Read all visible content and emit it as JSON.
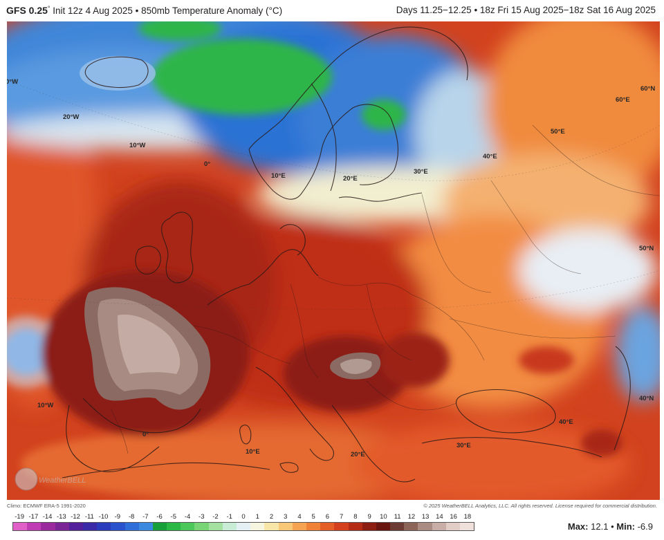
{
  "header": {
    "model": "GFS 0.25",
    "degree": "°",
    "init": "Init 12z 4 Aug 2025",
    "sep": "•",
    "product": "850mb Temperature Anomaly (°C)",
    "valid": "Days 11.25−12.25 • 18z Fri 15 Aug 2025−18z Sat 16 Aug 2025"
  },
  "grid_labels": {
    "lon_30w": "0°W",
    "lon_20w": "20°W",
    "lon_10w_top": "10°W",
    "lon_0_top": "0°",
    "lon_10e_top": "10°E",
    "lon_20e_top": "20°E",
    "lon_30e_top": "30°E",
    "lon_40e_top": "40°E",
    "lon_50e_top": "50°E",
    "lat_60n": "60°N",
    "lon_60e": "60°E",
    "lat_50n": "50°N",
    "lat_40n": "40°N",
    "lon_10w_bottom": "10°W",
    "lon_0_bottom": "0°",
    "lon_10e_bottom": "10°E",
    "lon_20e_bottom": "20°E",
    "lon_30e_bottom": "30°E",
    "lon_40e_bottom": "40°E"
  },
  "watermark": "WeatherBELL",
  "credits": {
    "left": "Climo: ECMWF ERA-5 1991-2020",
    "right": "© 2025 WeatherBELL Analytics, LLC. All rights reserved. License required for commercial distribution."
  },
  "colorbar": {
    "ticks": [
      "-19",
      "-17",
      "-14",
      "-13",
      "-12",
      "-11",
      "-10",
      "-9",
      "-8",
      "-7",
      "-6",
      "-5",
      "-4",
      "-3",
      "-2",
      "-1",
      "0",
      "1",
      "2",
      "3",
      "4",
      "5",
      "6",
      "7",
      "8",
      "9",
      "10",
      "11",
      "12",
      "13",
      "14",
      "16",
      "18"
    ],
    "colors": [
      "#e060c8",
      "#c03cb4",
      "#9a2a9e",
      "#7a2496",
      "#52209a",
      "#3a2aa8",
      "#2a3cbc",
      "#2a52cc",
      "#2f6ed8",
      "#3c8ae0",
      "#1aa03a",
      "#2cb844",
      "#4cc85a",
      "#78d474",
      "#a4e0a0",
      "#c8ecd6",
      "#e4f0f4",
      "#f6f6e0",
      "#f6e6a8",
      "#f8c878",
      "#f6a452",
      "#f08238",
      "#e45e28",
      "#d4401e",
      "#b42c16",
      "#8c1e12",
      "#6a1610",
      "#6c3c34",
      "#8c6458",
      "#aa8c82",
      "#c8aea6",
      "#e2ccc6",
      "#f0e0dc"
    ],
    "stat_max_label": "Max:",
    "stat_max": "12.1",
    "stat_sep": "•",
    "stat_min_label": "Min:",
    "stat_min": "-6.9"
  },
  "colors": {
    "cold_green": "#2fb54a",
    "cold_blue": "#3f7fd8",
    "neutral": "#e8eef4",
    "warm_orange": "#f08a3c",
    "hot_red": "#cf3a1c",
    "extreme_brown": "#8a6a62"
  }
}
